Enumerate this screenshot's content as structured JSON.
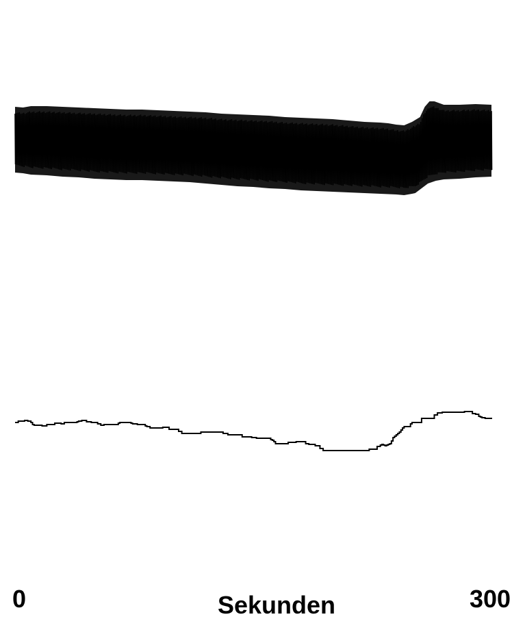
{
  "chart_data": {
    "type": "line",
    "xlabel": "Sekunden",
    "xlim": [
      0,
      300
    ],
    "x_tick_labels": [
      "0",
      "300"
    ],
    "grid": false,
    "line_color": "#000000",
    "series": [
      {
        "role": "pulsatile-waveform",
        "style": "dense-oscillation",
        "beat_count": 330,
        "upper_envelope": [
          [
            0,
            -87
          ],
          [
            5,
            -88
          ],
          [
            10,
            -90
          ],
          [
            20,
            -91
          ],
          [
            30,
            -93
          ],
          [
            40,
            -94
          ],
          [
            50,
            -96
          ],
          [
            60,
            -97
          ],
          [
            70,
            -98
          ],
          [
            80,
            -98
          ],
          [
            90,
            -99
          ],
          [
            100,
            -100
          ],
          [
            110,
            -101
          ],
          [
            120,
            -103
          ],
          [
            130,
            -105
          ],
          [
            140,
            -107
          ],
          [
            150,
            -108
          ],
          [
            160,
            -110
          ],
          [
            170,
            -111
          ],
          [
            180,
            -113
          ],
          [
            190,
            -114
          ],
          [
            200,
            -115
          ],
          [
            210,
            -116
          ],
          [
            220,
            -117
          ],
          [
            230,
            -118
          ],
          [
            240,
            -119
          ],
          [
            245,
            -120
          ],
          [
            250,
            -118
          ],
          [
            252,
            -117
          ],
          [
            256,
            -110
          ],
          [
            260,
            -103
          ],
          [
            265,
            -99
          ],
          [
            270,
            -97
          ],
          [
            280,
            -96
          ],
          [
            290,
            -94
          ],
          [
            300,
            -93
          ]
        ],
        "lower_envelope": [
          [
            0,
            -13
          ],
          [
            5,
            -14
          ],
          [
            10,
            -12
          ],
          [
            20,
            -12
          ],
          [
            30,
            -13
          ],
          [
            40,
            -14
          ],
          [
            50,
            -15
          ],
          [
            60,
            -16
          ],
          [
            70,
            -17
          ],
          [
            80,
            -17
          ],
          [
            90,
            -18
          ],
          [
            100,
            -19
          ],
          [
            110,
            -20
          ],
          [
            120,
            -21
          ],
          [
            130,
            -23
          ],
          [
            140,
            -24
          ],
          [
            150,
            -25
          ],
          [
            160,
            -26
          ],
          [
            170,
            -28
          ],
          [
            180,
            -29
          ],
          [
            190,
            -30
          ],
          [
            200,
            -31
          ],
          [
            210,
            -33
          ],
          [
            220,
            -35
          ],
          [
            230,
            -36
          ],
          [
            235,
            -37
          ],
          [
            240,
            -39
          ],
          [
            245,
            -40
          ],
          [
            250,
            -35
          ],
          [
            255,
            -28
          ],
          [
            258,
            -13
          ],
          [
            261,
            -5
          ],
          [
            264,
            -5
          ],
          [
            270,
            -10
          ],
          [
            280,
            -10
          ],
          [
            290,
            -9
          ],
          [
            300,
            -10
          ]
        ]
      },
      {
        "role": "mean-trace",
        "style": "step",
        "points": [
          [
            0,
            -66
          ],
          [
            2,
            -64
          ],
          [
            4,
            -64
          ],
          [
            6,
            -63
          ],
          [
            8,
            -64
          ],
          [
            9,
            -64
          ],
          [
            10,
            -66
          ],
          [
            11,
            -69
          ],
          [
            12,
            -70
          ],
          [
            15,
            -70
          ],
          [
            17,
            -71
          ],
          [
            20,
            -69
          ],
          [
            25,
            -67
          ],
          [
            27,
            -67
          ],
          [
            29,
            -68
          ],
          [
            31,
            -66
          ],
          [
            36,
            -66
          ],
          [
            39,
            -65
          ],
          [
            40,
            -64
          ],
          [
            42,
            -63
          ],
          [
            45,
            -65
          ],
          [
            48,
            -66
          ],
          [
            50,
            -66
          ],
          [
            52,
            -68
          ],
          [
            54,
            -70
          ],
          [
            56,
            -69
          ],
          [
            63,
            -69
          ],
          [
            65,
            -67
          ],
          [
            66,
            -66
          ],
          [
            71,
            -66
          ],
          [
            73,
            -67
          ],
          [
            74,
            -68
          ],
          [
            77,
            -69
          ],
          [
            80,
            -69
          ],
          [
            82,
            -71
          ],
          [
            83,
            -72
          ],
          [
            85,
            -74
          ],
          [
            91,
            -74
          ],
          [
            93,
            -73
          ],
          [
            97,
            -76
          ],
          [
            102,
            -76
          ],
          [
            103,
            -79
          ],
          [
            105,
            -82
          ],
          [
            115,
            -82
          ],
          [
            117,
            -80
          ],
          [
            128,
            -80
          ],
          [
            131,
            -82
          ],
          [
            134,
            -84
          ],
          [
            140,
            -84
          ],
          [
            143,
            -87
          ],
          [
            149,
            -88
          ],
          [
            152,
            -89
          ],
          [
            158,
            -89
          ],
          [
            161,
            -91
          ],
          [
            162,
            -92
          ],
          [
            163,
            -94
          ],
          [
            164,
            -97
          ],
          [
            171,
            -97
          ],
          [
            172,
            -95
          ],
          [
            177,
            -94
          ],
          [
            182,
            -94
          ],
          [
            183,
            -97
          ],
          [
            185,
            -98
          ],
          [
            189,
            -100
          ],
          [
            192,
            -104
          ],
          [
            194,
            -107
          ],
          [
            221,
            -107
          ],
          [
            223,
            -105
          ],
          [
            227,
            -105
          ],
          [
            228,
            -101
          ],
          [
            230,
            -99
          ],
          [
            231,
            -98
          ],
          [
            232,
            -99
          ],
          [
            233,
            -100
          ],
          [
            234,
            -99
          ],
          [
            235,
            -98
          ],
          [
            236,
            -97
          ],
          [
            237,
            -93
          ],
          [
            238,
            -88
          ],
          [
            239,
            -86
          ],
          [
            240,
            -84
          ],
          [
            241,
            -82
          ],
          [
            242,
            -80
          ],
          [
            243,
            -77
          ],
          [
            244,
            -74
          ],
          [
            245,
            -72
          ],
          [
            248,
            -72
          ],
          [
            249,
            -68
          ],
          [
            250,
            -66
          ],
          [
            255,
            -66
          ],
          [
            256,
            -60
          ],
          [
            262,
            -60
          ],
          [
            264,
            -55
          ],
          [
            266,
            -52
          ],
          [
            269,
            -51
          ],
          [
            280,
            -51
          ],
          [
            283,
            -50
          ],
          [
            285,
            -50
          ],
          [
            288,
            -53
          ],
          [
            290,
            -54
          ],
          [
            292,
            -57
          ],
          [
            293,
            -58
          ],
          [
            294,
            -59
          ],
          [
            295,
            -59
          ],
          [
            296,
            -60
          ],
          [
            299,
            -60
          ],
          [
            300,
            -61
          ]
        ]
      }
    ]
  }
}
